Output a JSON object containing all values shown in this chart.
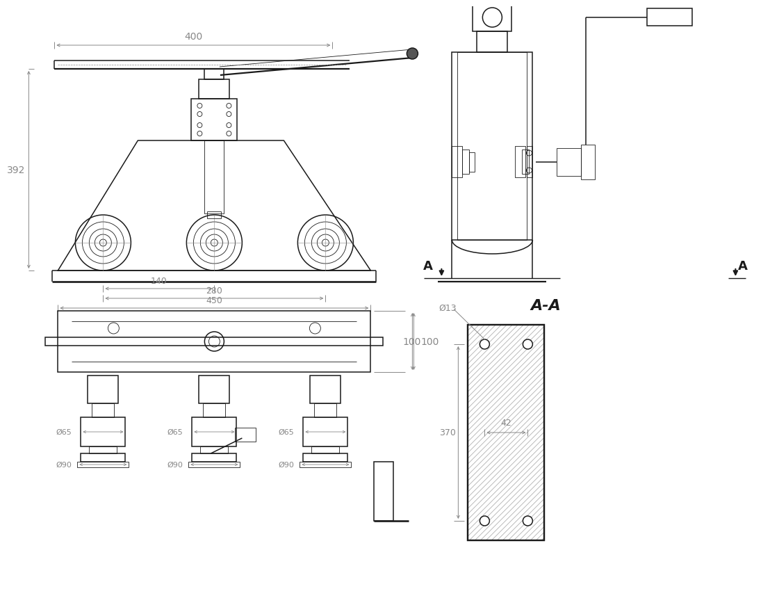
{
  "bg": "#ffffff",
  "lc": "#1a1a1a",
  "dc": "#888888",
  "d400": "400",
  "d392": "392",
  "d140": "140",
  "d280": "280",
  "d450": "450",
  "d100": "100",
  "phi65": "Ø65",
  "phi90": "Ø90",
  "phi13": "Ø13",
  "d42": "42",
  "d370": "370",
  "AA": "A-A",
  "A": "A"
}
